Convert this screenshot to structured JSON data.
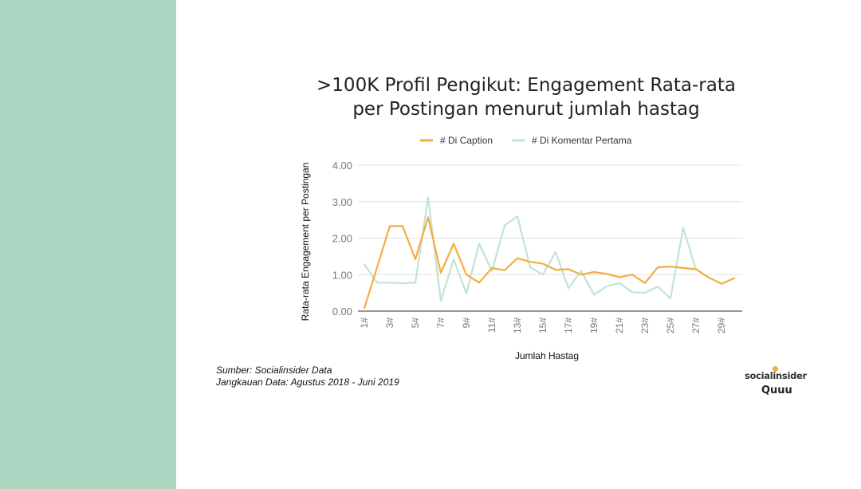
{
  "colors": {
    "sidebar": "#acd5c1",
    "caption": "#f5ad3f",
    "komentar": "#c2e3d5",
    "grid": "#e3e3e3",
    "axis": "#777777"
  },
  "title_lines": [
    ">100K Profil Pengikut: Engagement Rata-rata",
    "per Postingan menurut jumlah hastag"
  ],
  "source": {
    "line1": "Sumber: Socialinsider Data",
    "line2": "Jangkauan Data: Agustus 2018 - Juni 2019"
  },
  "logo": {
    "top": "socialinsider",
    "bottom": "Quuu"
  },
  "chart_data": {
    "type": "line",
    "title": ">100K Profil Pengikut: Engagement Rata-rata per Postingan menurut jumlah hastag",
    "xlabel": "Jumlah Hastag",
    "ylabel": "Rata-rata Engagement  per Postingan",
    "ylim": [
      0,
      4
    ],
    "yticks": [
      "0.00",
      "1.00",
      "2.00",
      "3.00",
      "4.00"
    ],
    "x_tick_labels": [
      "1#",
      "3#",
      "5#",
      "7#",
      "9#",
      "11#",
      "13#",
      "15#",
      "17#",
      "19#",
      "21#",
      "23#",
      "25#",
      "27#",
      "29#"
    ],
    "legend_position": "top",
    "grid": true,
    "x": [
      1,
      2,
      3,
      4,
      5,
      6,
      7,
      8,
      9,
      10,
      11,
      12,
      13,
      14,
      15,
      16,
      17,
      18,
      19,
      20,
      21,
      22,
      23,
      24,
      25,
      26,
      27,
      28,
      29,
      30
    ],
    "series": [
      {
        "name": "# Di Caption",
        "values": [
          0.08,
          1.2,
          2.33,
          2.33,
          1.42,
          2.57,
          1.05,
          1.85,
          1.0,
          0.78,
          1.18,
          1.12,
          1.45,
          1.35,
          1.3,
          1.13,
          1.15,
          1.0,
          1.07,
          1.02,
          0.93,
          1.0,
          0.77,
          1.2,
          1.22,
          1.18,
          1.15,
          0.92,
          0.75,
          0.9
        ]
      },
      {
        "name": "# Di Komentar Pertama",
        "values": [
          1.28,
          0.78,
          0.78,
          0.76,
          0.78,
          3.12,
          0.28,
          1.42,
          0.48,
          1.85,
          1.1,
          2.35,
          2.6,
          1.2,
          1.0,
          1.62,
          0.63,
          1.1,
          0.45,
          0.68,
          0.77,
          0.52,
          0.5,
          0.67,
          0.35,
          2.28,
          1.13,
          null,
          null,
          null
        ]
      }
    ]
  }
}
